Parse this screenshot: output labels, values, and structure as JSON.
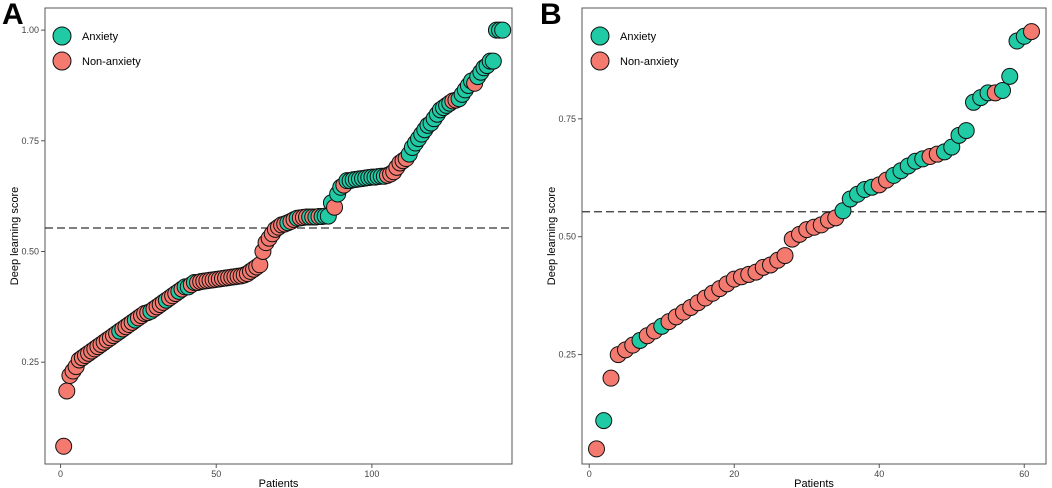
{
  "colors": {
    "anxiety": "#1fcaa4",
    "non_anxiety": "#f47a70",
    "stroke": "#111111",
    "axis": "#555555",
    "threshold": "#333333"
  },
  "chart_data": [
    {
      "panel_label": "A",
      "type": "scatter",
      "xlabel": "Patients",
      "ylabel": "Deep learning score",
      "xlim": [
        -5,
        145
      ],
      "ylim": [
        0.02,
        1.05
      ],
      "x_ticks": [
        0,
        50,
        100
      ],
      "x_tick_labels": [
        "0",
        "50",
        "100"
      ],
      "y_ticks": [
        0.25,
        0.5,
        0.75,
        1.0
      ],
      "y_tick_labels": [
        "0.25",
        "0.50",
        "0.75",
        "1.00"
      ],
      "threshold": 0.553,
      "legend": [
        {
          "name": "Anxiety",
          "key": "anxiety"
        },
        {
          "name": "Non-anxiety",
          "key": "non_anxiety"
        }
      ],
      "legend_position": "top-left",
      "series": [
        {
          "name": "Anxiety",
          "key": "anxiety",
          "x": [
            19,
            24,
            29,
            34,
            38,
            40,
            41,
            43,
            73,
            76,
            80,
            82,
            84,
            85,
            86,
            87,
            89,
            90,
            92,
            93,
            94,
            95,
            96,
            97,
            98,
            99,
            100,
            101,
            102,
            103,
            104,
            112,
            113,
            114,
            115,
            116,
            117,
            118,
            119,
            120,
            121,
            122,
            123,
            124,
            125,
            128,
            129,
            130,
            131,
            132,
            134,
            135,
            136,
            137,
            138,
            139,
            140,
            141,
            142
          ],
          "y": [
            0.32,
            0.345,
            0.365,
            0.39,
            0.41,
            0.42,
            0.42,
            0.43,
            0.565,
            0.575,
            0.578,
            0.578,
            0.579,
            0.58,
            0.58,
            0.61,
            0.63,
            0.645,
            0.66,
            0.66,
            0.662,
            0.663,
            0.664,
            0.665,
            0.666,
            0.667,
            0.668,
            0.668,
            0.669,
            0.67,
            0.67,
            0.72,
            0.735,
            0.745,
            0.755,
            0.765,
            0.775,
            0.785,
            0.79,
            0.8,
            0.81,
            0.82,
            0.825,
            0.83,
            0.835,
            0.845,
            0.855,
            0.865,
            0.875,
            0.885,
            0.895,
            0.905,
            0.915,
            0.92,
            0.93,
            0.93,
            1.0,
            1.0,
            1.0
          ]
        },
        {
          "name": "Non-anxiety",
          "key": "non_anxiety",
          "x": [
            1,
            2,
            3,
            4,
            5,
            6,
            7,
            8,
            9,
            10,
            11,
            12,
            13,
            14,
            15,
            16,
            17,
            18,
            20,
            21,
            22,
            23,
            25,
            26,
            27,
            28,
            30,
            31,
            32,
            33,
            35,
            36,
            37,
            39,
            42,
            44,
            45,
            46,
            47,
            48,
            49,
            50,
            51,
            52,
            53,
            54,
            55,
            56,
            57,
            58,
            59,
            60,
            61,
            62,
            63,
            64,
            65,
            66,
            67,
            68,
            69,
            70,
            71,
            72,
            74,
            75,
            77,
            78,
            79,
            81,
            83,
            88,
            91,
            105,
            106,
            107,
            108,
            109,
            110,
            111,
            126,
            127,
            133
          ],
          "y": [
            0.06,
            0.185,
            0.22,
            0.23,
            0.24,
            0.255,
            0.26,
            0.265,
            0.27,
            0.275,
            0.28,
            0.285,
            0.29,
            0.295,
            0.3,
            0.305,
            0.31,
            0.315,
            0.325,
            0.33,
            0.335,
            0.34,
            0.35,
            0.355,
            0.36,
            0.362,
            0.37,
            0.375,
            0.38,
            0.385,
            0.395,
            0.4,
            0.405,
            0.415,
            0.425,
            0.43,
            0.432,
            0.433,
            0.434,
            0.435,
            0.436,
            0.437,
            0.438,
            0.439,
            0.44,
            0.441,
            0.442,
            0.443,
            0.444,
            0.445,
            0.447,
            0.45,
            0.455,
            0.46,
            0.465,
            0.47,
            0.5,
            0.52,
            0.53,
            0.54,
            0.55,
            0.555,
            0.56,
            0.562,
            0.568,
            0.572,
            0.576,
            0.577,
            0.578,
            0.578,
            0.579,
            0.6,
            0.65,
            0.672,
            0.675,
            0.68,
            0.69,
            0.7,
            0.705,
            0.71,
            0.84,
            0.842,
            0.88
          ]
        }
      ]
    },
    {
      "panel_label": "B",
      "type": "scatter",
      "xlabel": "Patients",
      "ylabel": "Deep learning score",
      "xlim": [
        -1,
        63
      ],
      "ylim": [
        0.018,
        0.985
      ],
      "x_ticks": [
        0,
        20,
        40,
        60
      ],
      "x_tick_labels": [
        "0",
        "20",
        "40",
        "60"
      ],
      "y_ticks": [
        0.25,
        0.5,
        0.75
      ],
      "y_tick_labels": [
        "0.25",
        "0.50",
        "0.75"
      ],
      "threshold": 0.553,
      "legend": [
        {
          "name": "Anxiety",
          "key": "anxiety"
        },
        {
          "name": "Non-anxiety",
          "key": "non_anxiety"
        }
      ],
      "legend_position": "top-left",
      "series": [
        {
          "name": "Anxiety",
          "key": "anxiety",
          "x": [
            2,
            7,
            10,
            35,
            36,
            37,
            38,
            39,
            42,
            43,
            44,
            45,
            46,
            49,
            50,
            51,
            52,
            53,
            54,
            55,
            57,
            58,
            59,
            60
          ],
          "y": [
            0.11,
            0.28,
            0.31,
            0.555,
            0.58,
            0.59,
            0.6,
            0.605,
            0.63,
            0.64,
            0.65,
            0.66,
            0.665,
            0.68,
            0.69,
            0.715,
            0.725,
            0.785,
            0.795,
            0.805,
            0.81,
            0.84,
            0.915,
            0.925
          ]
        },
        {
          "name": "Non-anxiety",
          "key": "non_anxiety",
          "x": [
            1,
            3,
            4,
            5,
            6,
            8,
            9,
            11,
            12,
            13,
            14,
            15,
            16,
            17,
            18,
            19,
            20,
            21,
            22,
            23,
            24,
            25,
            26,
            27,
            28,
            29,
            30,
            31,
            32,
            33,
            34,
            40,
            41,
            47,
            48,
            56,
            61
          ],
          "y": [
            0.05,
            0.2,
            0.25,
            0.26,
            0.27,
            0.29,
            0.3,
            0.32,
            0.33,
            0.34,
            0.35,
            0.36,
            0.37,
            0.38,
            0.39,
            0.4,
            0.41,
            0.415,
            0.42,
            0.425,
            0.435,
            0.44,
            0.45,
            0.46,
            0.495,
            0.505,
            0.515,
            0.52,
            0.525,
            0.535,
            0.54,
            0.61,
            0.62,
            0.67,
            0.675,
            0.805,
            0.935
          ]
        }
      ]
    }
  ]
}
